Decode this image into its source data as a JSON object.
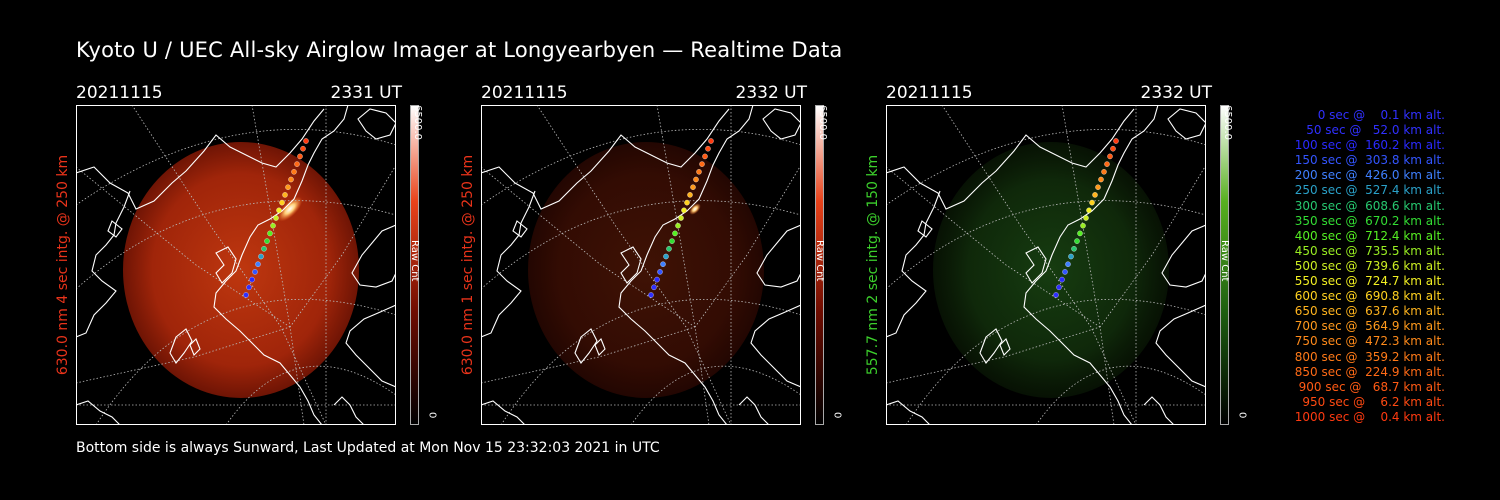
{
  "title": "Kyoto U / UEC All-sky Airglow Imager at Longyearbyen — Realtime Data",
  "footer": "Bottom side is always Sunward, Last Updated at Mon Nov 15 23:32:03 2021 in UTC",
  "colors": {
    "red630": "#e8331a",
    "green557": "#3ccf2c",
    "map": "#ffffff",
    "background": "#000000"
  },
  "panels": [
    {
      "date": "20211115",
      "time": "2331 UT",
      "side_label": "630.0 nm 4 sec intg. @ 250 km",
      "cbar_max": "6500.0",
      "cbar_min": "0",
      "cbar_unit": "Raw Cnt",
      "scheme": "red",
      "intensity": 1.0
    },
    {
      "date": "20211115",
      "time": "2332 UT",
      "side_label": "630.0 nm 1 sec intg. @ 250 km",
      "cbar_max": "6500.0",
      "cbar_min": "0",
      "cbar_unit": "Raw Cnt",
      "scheme": "red",
      "intensity": 0.3
    },
    {
      "date": "20211115",
      "time": "2332 UT",
      "side_label": "557.7 nm 2 sec intg. @ 150 km",
      "cbar_max": "6500.0",
      "cbar_min": "0",
      "cbar_unit": "Raw Cnt",
      "scheme": "green",
      "intensity": 0.3
    }
  ],
  "legend": [
    {
      "text": "0 sec @    0.1 km alt.",
      "color": "#3030ff"
    },
    {
      "text": "50 sec @   52.0 km alt.",
      "color": "#3030ff"
    },
    {
      "text": "100 sec @  160.2 km alt.",
      "color": "#2a2aff"
    },
    {
      "text": "150 sec @  303.8 km alt.",
      "color": "#3355ff"
    },
    {
      "text": "200 sec @  426.0 km alt.",
      "color": "#3f7fff"
    },
    {
      "text": "250 sec @  527.4 km alt.",
      "color": "#2aa0c8"
    },
    {
      "text": "300 sec @  608.6 km alt.",
      "color": "#27c86f"
    },
    {
      "text": "350 sec @  670.2 km alt.",
      "color": "#33dd33"
    },
    {
      "text": "400 sec @  712.4 km alt.",
      "color": "#55ee22"
    },
    {
      "text": "450 sec @  735.5 km alt.",
      "color": "#99ee22"
    },
    {
      "text": "500 sec @  739.6 km alt.",
      "color": "#ccee22"
    },
    {
      "text": "550 sec @  724.7 km alt.",
      "color": "#f2f022"
    },
    {
      "text": "600 sec @  690.8 km alt.",
      "color": "#ffd21f"
    },
    {
      "text": "650 sec @  637.6 km alt.",
      "color": "#ffb41e"
    },
    {
      "text": "700 sec @  564.9 km alt.",
      "color": "#ff9a1c"
    },
    {
      "text": "750 sec @  472.3 km alt.",
      "color": "#ff8a1a"
    },
    {
      "text": "800 sec @  359.2 km alt.",
      "color": "#ff7a18"
    },
    {
      "text": "850 sec @  224.9 km alt.",
      "color": "#ff6a16"
    },
    {
      "text": "900 sec @   68.7 km alt.",
      "color": "#ff5a14"
    },
    {
      "text": "950 sec @    6.2 km alt.",
      "color": "#ff4a12"
    },
    {
      "text": "1000 sec @    0.4 km alt.",
      "color": "#ff3a10"
    }
  ]
}
